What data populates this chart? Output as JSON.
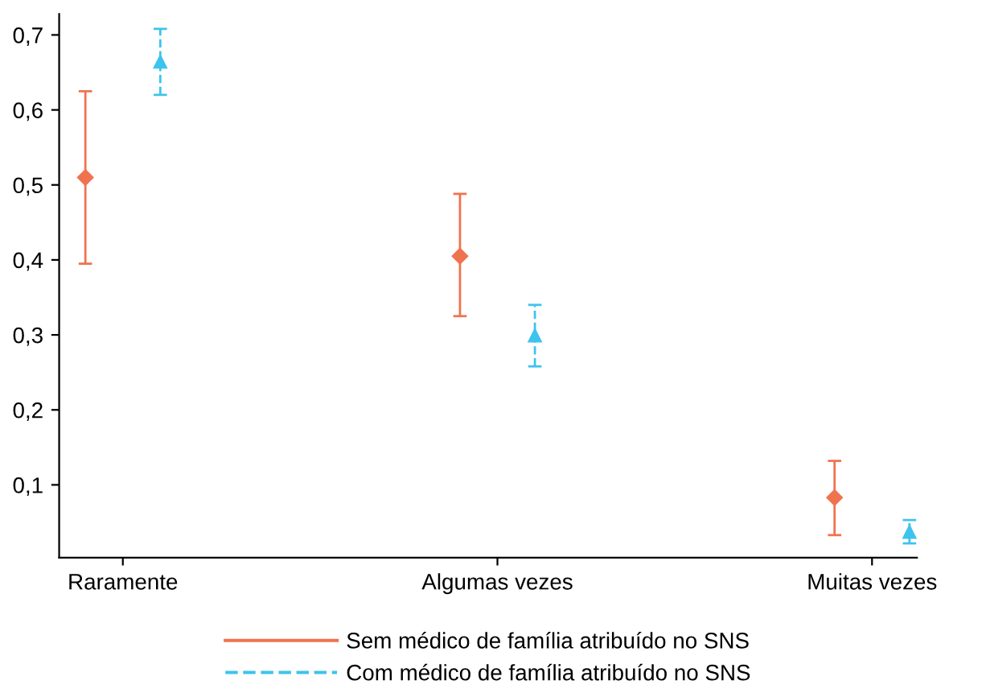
{
  "chart_data": {
    "type": "scatter",
    "categories": [
      "Raramente",
      "Algumas vezes",
      "Muitas vezes"
    ],
    "series": [
      {
        "name": "Sem médico de família atribuído no SNS",
        "color": "#f0734f",
        "marker": "diamond",
        "line_style": "solid",
        "values": [
          0.51,
          0.405,
          0.083
        ],
        "errors": [
          [
            0.395,
            0.625
          ],
          [
            0.325,
            0.488
          ],
          [
            0.033,
            0.132
          ]
        ]
      },
      {
        "name": "Com médico de família atribuído no SNS",
        "color": "#3ec3ee",
        "marker": "triangle",
        "line_style": "dashed",
        "values": [
          0.665,
          0.3,
          0.038
        ],
        "errors": [
          [
            0.62,
            0.708
          ],
          [
            0.258,
            0.34
          ],
          [
            0.022,
            0.053
          ]
        ]
      }
    ],
    "ylim": [
      0.003,
      0.728
    ],
    "yticks": [
      {
        "value": 0.1,
        "label": "0,1"
      },
      {
        "value": 0.2,
        "label": "0,2"
      },
      {
        "value": 0.3,
        "label": "0,3"
      },
      {
        "value": 0.4,
        "label": "0,4"
      },
      {
        "value": 0.5,
        "label": "0,5"
      },
      {
        "value": 0.6,
        "label": "0,6"
      },
      {
        "value": 0.7,
        "label": "0,7"
      }
    ],
    "grid": false,
    "legend": "bottom"
  }
}
